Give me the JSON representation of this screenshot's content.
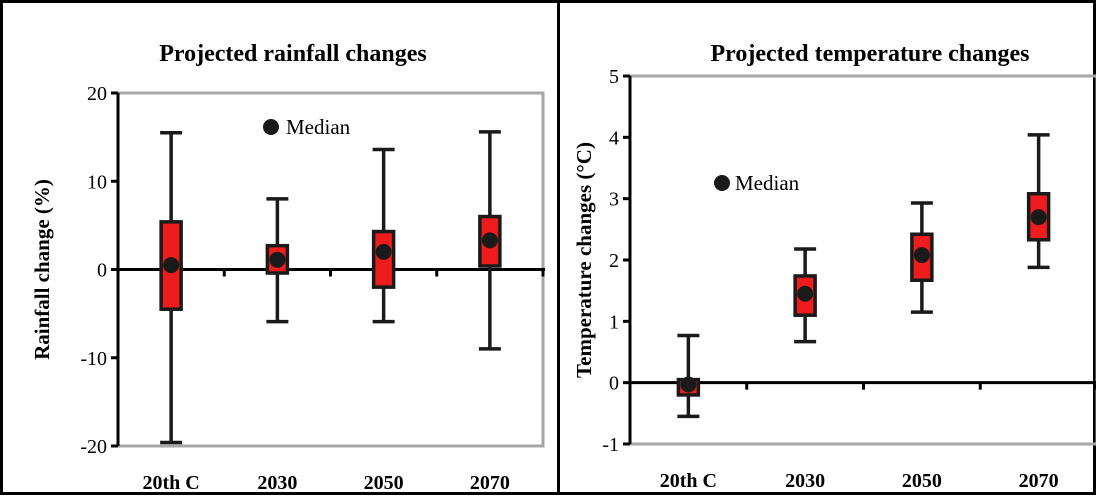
{
  "chart_data": [
    {
      "type": "box",
      "title": "Projected rainfall changes",
      "xlabel": "",
      "ylabel": "Rainfall  change (%)",
      "ylim": [
        -20,
        20
      ],
      "yticks": [
        -20,
        -10,
        0,
        10,
        20
      ],
      "categories": [
        "20th C",
        "2030",
        "2050",
        "2070"
      ],
      "legend": {
        "label": "Median",
        "placement": "top-center"
      },
      "series": [
        {
          "min": -19.6,
          "q1": -4.5,
          "median": 0.5,
          "q3": 5.4,
          "max": 15.5
        },
        {
          "min": -5.9,
          "q1": -0.4,
          "median": 1.1,
          "q3": 2.7,
          "max": 8.0
        },
        {
          "min": -5.9,
          "q1": -2.0,
          "median": 2.0,
          "q3": 4.3,
          "max": 13.6
        },
        {
          "min": -9.0,
          "q1": 0.4,
          "median": 3.3,
          "q3": 6.0,
          "max": 15.6
        }
      ],
      "colors": {
        "box": "#ee1c1c",
        "outline": "#1a1a1a",
        "plot_border": "#a6a6a6"
      }
    },
    {
      "type": "box",
      "title": "Projected temperature changes",
      "xlabel": "",
      "ylabel": "Temperature changes (°C)",
      "ylim": [
        -1,
        5
      ],
      "yticks": [
        -1,
        0,
        1,
        2,
        3,
        4,
        5
      ],
      "categories": [
        "20th C",
        "2030",
        "2050",
        "2070"
      ],
      "legend": {
        "label": "Median",
        "placement": "top-left"
      },
      "series": [
        {
          "min": -0.55,
          "q1": -0.2,
          "median": -0.03,
          "q3": 0.05,
          "max": 0.77
        },
        {
          "min": 0.67,
          "q1": 1.1,
          "median": 1.45,
          "q3": 1.74,
          "max": 2.18
        },
        {
          "min": 1.15,
          "q1": 1.67,
          "median": 2.08,
          "q3": 2.42,
          "max": 2.93
        },
        {
          "min": 1.88,
          "q1": 2.33,
          "median": 2.7,
          "q3": 3.08,
          "max": 4.04
        }
      ],
      "colors": {
        "box": "#ee1c1c",
        "outline": "#1a1a1a",
        "plot_border": "#a6a6a6"
      }
    }
  ]
}
